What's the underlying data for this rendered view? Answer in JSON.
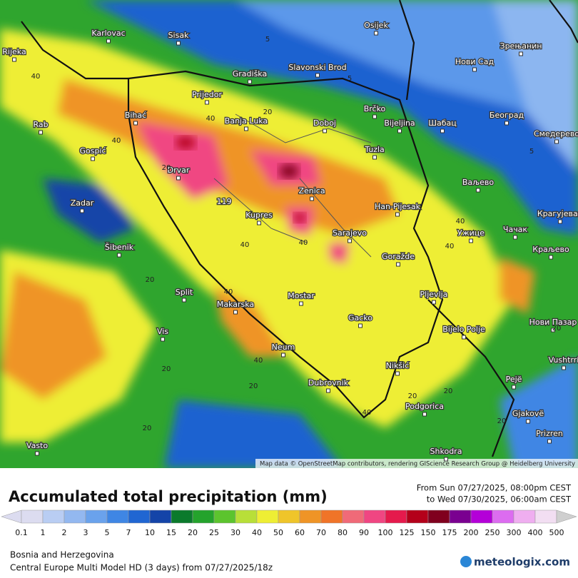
{
  "map": {
    "places": [
      "Karlovac",
      "Sisak",
      "Osijek",
      "Зрењанин",
      "Rijeka",
      "Gradiška",
      "Slavonski Brod",
      "Нови Сад",
      "Prijedor",
      "Brčko",
      "Bihać",
      "Banja Luka",
      "Doboj",
      "Bijeljina",
      "Шабац",
      "Београд",
      "Смедерево",
      "Rab",
      "Gospić",
      "Tuzla",
      "Drvar",
      "Zenica",
      "Ваљево",
      "Zadar",
      "Han-Pijesak",
      "Kupres",
      "Крагујевац",
      "Sarajevo",
      "Ужице",
      "Чачак",
      "Šibenik",
      "Goražde",
      "Краљево",
      "Split",
      "Makarska",
      "Mostar",
      "Pljevlja",
      "Gacko",
      "Нови Пазар",
      "Bijelo Polje",
      "Vis",
      "Neum",
      "Nikšić",
      "Vushtrri",
      "Dubrovnik",
      "Podgorica",
      "Pejë",
      "Gjakovë",
      "Prizren",
      "Vasto",
      "Shkodra"
    ],
    "max_label": "119",
    "contour_labels": [
      40,
      20,
      5,
      5,
      40,
      40,
      20,
      40,
      40,
      20,
      20,
      40,
      20,
      40,
      5,
      20,
      20,
      40,
      40,
      20,
      20,
      20,
      40
    ],
    "attribution": "Map data © OpenStreetMap contributors, rendering GIScience Research Group @ Heidelberg University"
  },
  "legend": {
    "title": "Accumulated total precipitation (mm)",
    "period_from": "From Sun 07/27/2025, 08:00pm CEST",
    "period_to": "to Wed 07/30/2025, 06:00am CEST",
    "ticks": [
      0.1,
      1,
      2,
      3,
      5,
      7,
      10,
      15,
      20,
      25,
      30,
      40,
      50,
      60,
      70,
      80,
      90,
      100,
      125,
      150,
      175,
      200,
      250,
      300,
      400,
      500
    ],
    "colors": [
      "#dcdcf0",
      "#b9cdf3",
      "#93b8f0",
      "#6aa2ec",
      "#3f86e4",
      "#2066d2",
      "#1444a8",
      "#0b7a2c",
      "#24a32c",
      "#5cc42e",
      "#b8df38",
      "#eeee34",
      "#efc52a",
      "#ef9426",
      "#f07428",
      "#f06a78",
      "#f04682",
      "#e51a4c",
      "#b4001a",
      "#80001e",
      "#7a0090",
      "#b400d8",
      "#dc6cf0",
      "#efaef0",
      "#f2def2",
      "#cfcfcf"
    ],
    "region": "Bosnia and Herzegovina",
    "model": "Central Europe Multi Model HD (3 days) from  07/27/2025/18z",
    "brand": "meteologix.com"
  }
}
